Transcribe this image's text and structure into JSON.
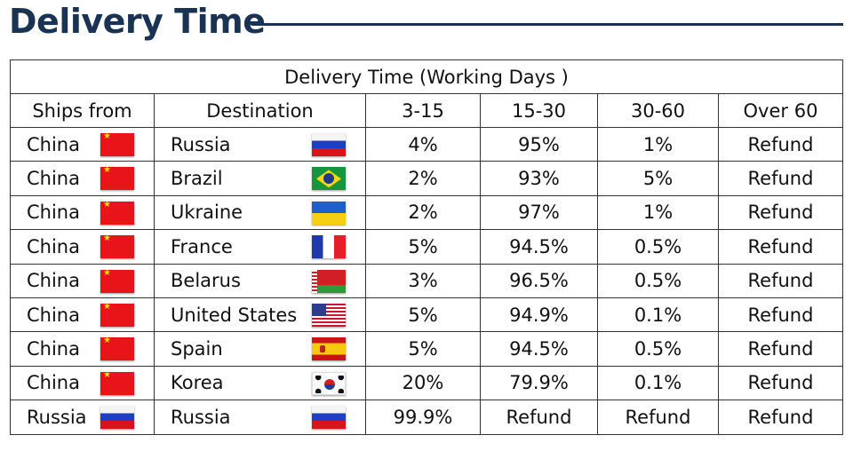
{
  "heading": "Delivery Time",
  "table": {
    "caption": "Delivery Time (Working Days )",
    "headers": [
      "Ships from",
      "Destination",
      "3-15",
      "15-30",
      "30-60",
      "Over 60"
    ],
    "rows": [
      {
        "from": "China",
        "from_flag": "cn",
        "to": "Russia",
        "to_flag": "ru",
        "c1": "4%",
        "c2": "95%",
        "c3": "1%",
        "c4": "Refund"
      },
      {
        "from": "China",
        "from_flag": "cn",
        "to": "Brazil",
        "to_flag": "br",
        "c1": "2%",
        "c2": "93%",
        "c3": "5%",
        "c4": "Refund"
      },
      {
        "from": "China",
        "from_flag": "cn",
        "to": "Ukraine",
        "to_flag": "ua",
        "c1": "2%",
        "c2": "97%",
        "c3": "1%",
        "c4": "Refund"
      },
      {
        "from": "China",
        "from_flag": "cn",
        "to": "France",
        "to_flag": "fr",
        "c1": "5%",
        "c2": "94.5%",
        "c3": "0.5%",
        "c4": "Refund"
      },
      {
        "from": "China",
        "from_flag": "cn",
        "to": "Belarus",
        "to_flag": "by",
        "c1": "3%",
        "c2": "96.5%",
        "c3": "0.5%",
        "c4": "Refund"
      },
      {
        "from": "China",
        "from_flag": "cn",
        "to": "United States",
        "to_flag": "us",
        "c1": "5%",
        "c2": "94.9%",
        "c3": "0.1%",
        "c4": "Refund"
      },
      {
        "from": "China",
        "from_flag": "cn",
        "to": "Spain",
        "to_flag": "es",
        "c1": "5%",
        "c2": "94.5%",
        "c3": "0.5%",
        "c4": "Refund"
      },
      {
        "from": "China",
        "from_flag": "cn",
        "to": "Korea",
        "to_flag": "kr",
        "c1": "20%",
        "c2": "79.9%",
        "c3": "0.1%",
        "c4": "Refund"
      },
      {
        "from": "Russia",
        "from_flag": "ru",
        "to": "Russia",
        "to_flag": "ru",
        "c1": "99.9%",
        "c2": "Refund",
        "c3": "Refund",
        "c4": "Refund"
      }
    ]
  },
  "colors": {
    "heading": "#1b3352"
  }
}
